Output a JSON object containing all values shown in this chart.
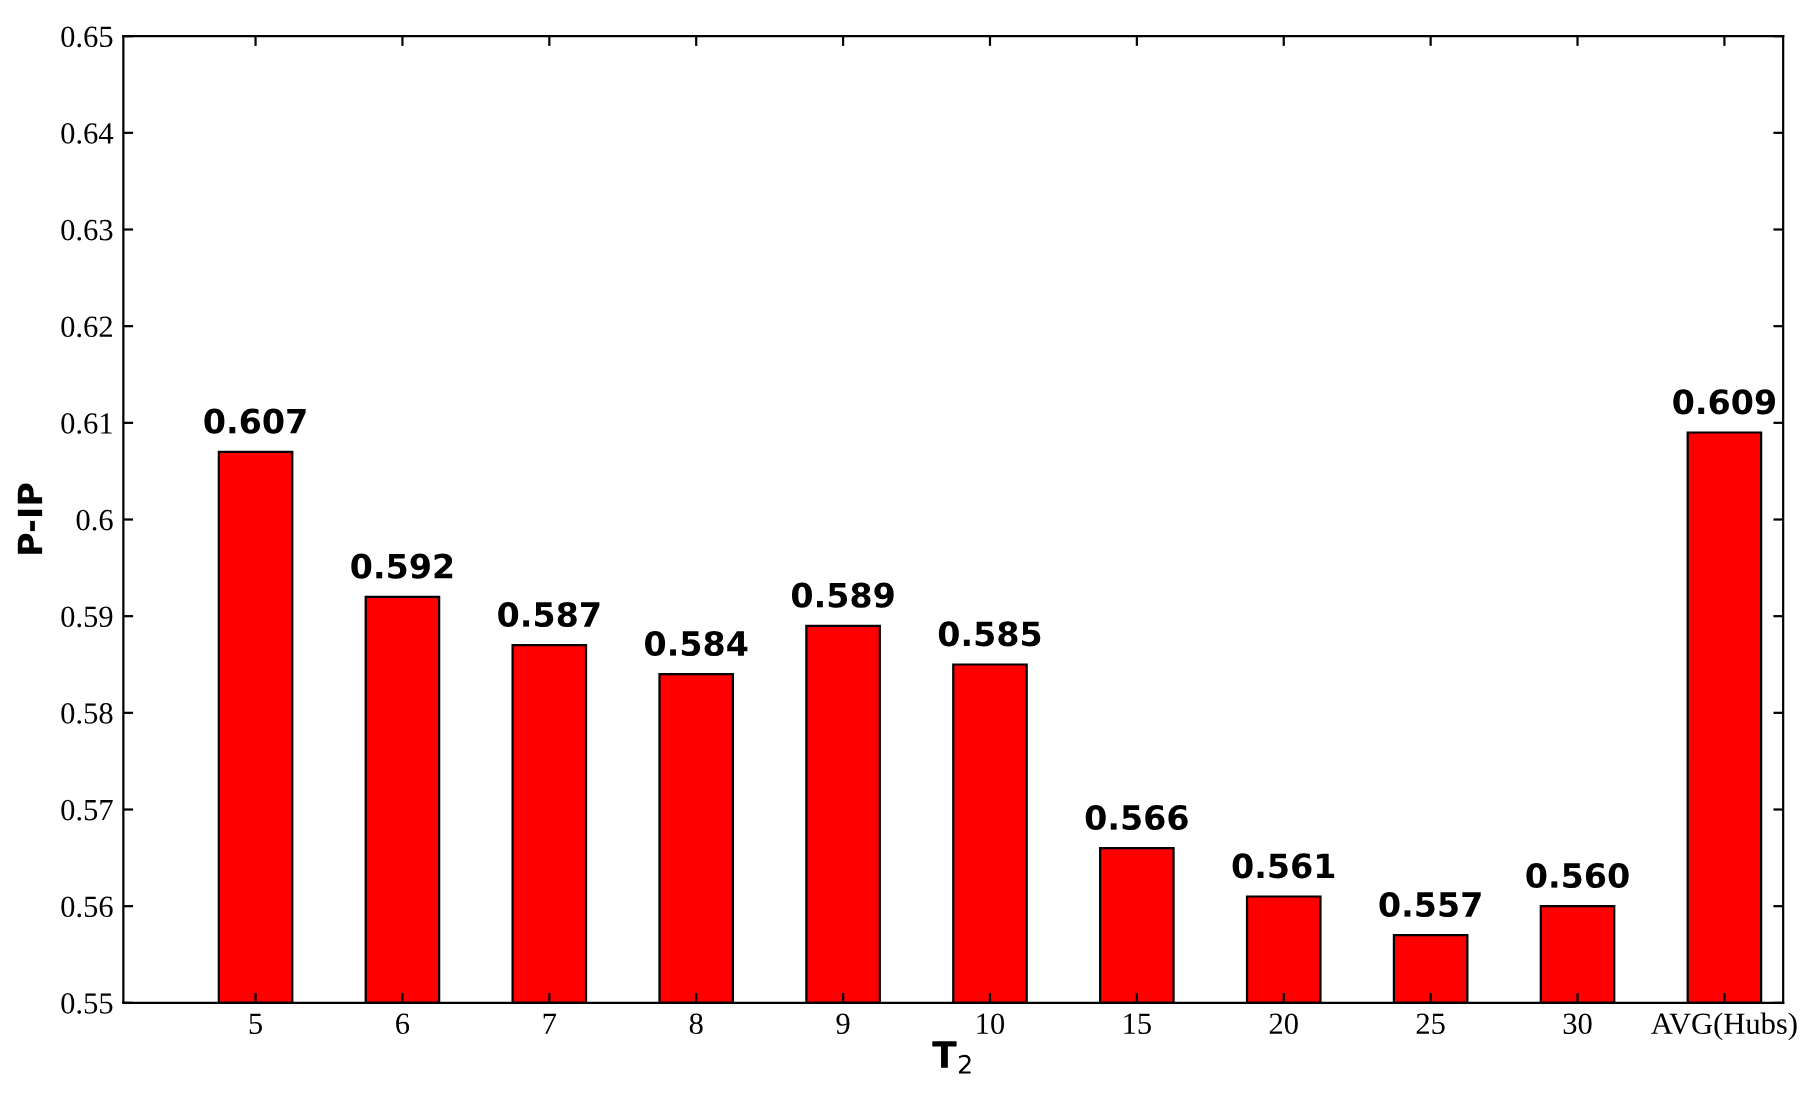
{
  "chart_data": {
    "type": "bar",
    "xlabel": "T$_{2}$",
    "ylabel": "P-IP",
    "categories": [
      "5",
      "6",
      "7",
      "8",
      "9",
      "10",
      "15",
      "20",
      "25",
      "30",
      "AVG(Hubs)"
    ],
    "values": [
      0.607,
      0.592,
      0.587,
      0.584,
      0.589,
      0.585,
      0.566,
      0.561,
      0.557,
      0.56,
      0.609
    ],
    "value_labels": [
      "0.607",
      "0.592",
      "0.587",
      "0.584",
      "0.589",
      "0.585",
      "0.566",
      "0.561",
      "0.557",
      "0.560",
      "0.609"
    ],
    "color": "#ff0000",
    "ylim": [
      0.55,
      0.65
    ],
    "yticks": [
      0.55,
      0.56,
      0.57,
      0.58,
      0.59,
      0.6,
      0.61,
      0.62,
      0.63,
      0.64,
      0.65
    ],
    "grid": false,
    "legend": false
  }
}
